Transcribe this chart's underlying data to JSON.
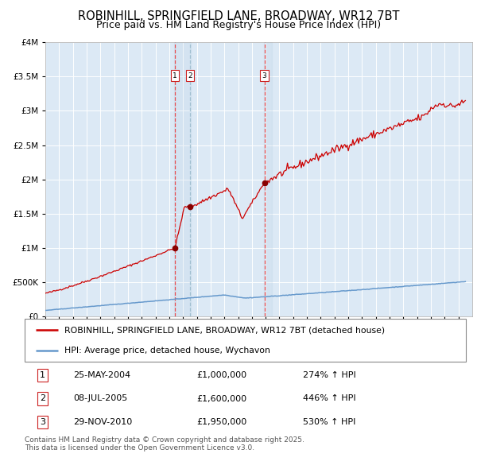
{
  "title": "ROBINHILL, SPRINGFIELD LANE, BROADWAY, WR12 7BT",
  "subtitle": "Price paid vs. HM Land Registry's House Price Index (HPI)",
  "background_color": "#ffffff",
  "plot_bg_color": "#dce9f5",
  "grid_color": "#ffffff",
  "ylim": [
    0,
    4000000
  ],
  "yticks": [
    0,
    500000,
    1000000,
    1500000,
    2000000,
    2500000,
    3000000,
    3500000,
    4000000
  ],
  "xlim_start": 1995,
  "xlim_end": 2026,
  "legend_label_red": "ROBINHILL, SPRINGFIELD LANE, BROADWAY, WR12 7BT (detached house)",
  "legend_label_blue": "HPI: Average price, detached house, Wychavon",
  "footer_text": "Contains HM Land Registry data © Crown copyright and database right 2025.\nThis data is licensed under the Open Government Licence v3.0.",
  "sales": [
    {
      "num": 1,
      "date_label": "25-MAY-2004",
      "price": 1000000,
      "pct": "274% ↑ HPI",
      "x_year": 2004.39
    },
    {
      "num": 2,
      "date_label": "08-JUL-2005",
      "price": 1600000,
      "pct": "446% ↑ HPI",
      "x_year": 2005.52
    },
    {
      "num": 3,
      "date_label": "29-NOV-2010",
      "price": 1950000,
      "pct": "530% ↑ HPI",
      "x_year": 2010.91
    }
  ],
  "red_line_color": "#cc0000",
  "blue_line_color": "#6699cc",
  "marker_color": "#880000",
  "vline_color": "#ee3333",
  "vline2_color": "#99bbcc"
}
